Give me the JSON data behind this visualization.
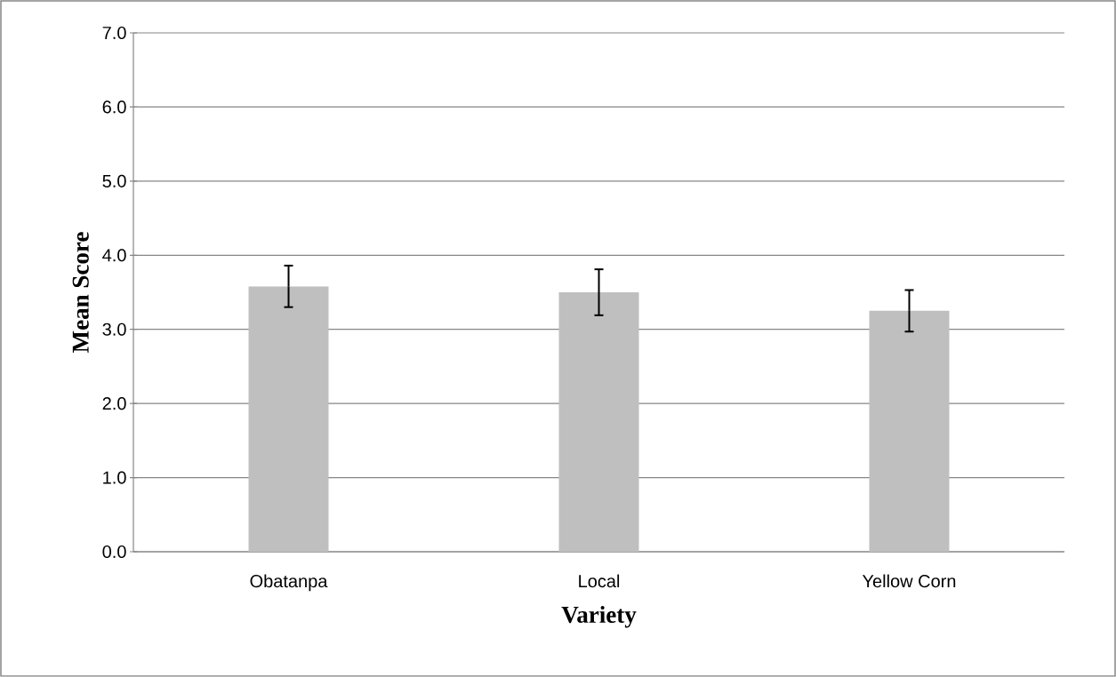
{
  "chart_data": {
    "type": "bar",
    "xlabel": "Variety",
    "ylabel": "Mean Score",
    "categories": [
      "Obatanpa",
      "Local",
      "Yellow Corn"
    ],
    "values": [
      3.58,
      3.5,
      3.25
    ],
    "errors": [
      0.28,
      0.31,
      0.28
    ],
    "color": "#bfbfbf",
    "ylim": [
      0,
      7
    ],
    "yticks": [
      {
        "value": 0,
        "label": "0.0"
      },
      {
        "value": 1,
        "label": "1.0"
      },
      {
        "value": 2,
        "label": "2.0"
      },
      {
        "value": 3,
        "label": "3.0"
      },
      {
        "value": 4,
        "label": "4.0"
      },
      {
        "value": 5,
        "label": "5.0"
      },
      {
        "value": 6,
        "label": "6.0"
      },
      {
        "value": 7,
        "label": "7.0"
      }
    ],
    "grid": "y"
  }
}
